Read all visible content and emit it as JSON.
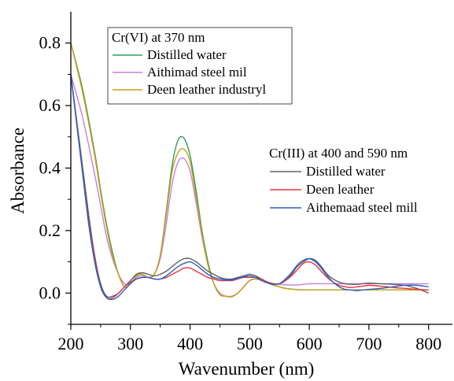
{
  "chart_data": {
    "type": "line",
    "xlabel": "Wavenumber (nm)",
    "ylabel": "Absorbance",
    "xlim": [
      200,
      840
    ],
    "ylim": [
      -0.1,
      0.9
    ],
    "xticks": [
      200,
      300,
      400,
      500,
      600,
      700,
      800
    ],
    "yticks": [
      0.0,
      0.2,
      0.4,
      0.6,
      0.8
    ],
    "ytick_labels": [
      "0.0",
      "0.2",
      "0.4",
      "0.6",
      "0.8"
    ],
    "grid": false,
    "legends": [
      {
        "title": "Cr(VI) at 370 nm",
        "placement": "top-left",
        "entries": [
          {
            "label": "Distilled water",
            "color": "#2ca05a"
          },
          {
            "label": "Aithimad steel mil",
            "color": "#c87fdc"
          },
          {
            "label": "Deen leather industryl",
            "color": "#c8a014"
          }
        ]
      },
      {
        "title": "Cr(III) at 400 and 590 nm",
        "placement": "right",
        "entries": [
          {
            "label": "Distilled water",
            "color": "#606060"
          },
          {
            "label": "Deen leather",
            "color": "#e8333a"
          },
          {
            "label": "Aithemaad steel mill",
            "color": "#2a5fc9"
          }
        ]
      }
    ],
    "series": [
      {
        "color": "#2ca05a",
        "x": [
          200,
          220,
          240,
          250,
          260,
          270,
          280,
          290,
          300,
          310,
          320,
          330,
          340,
          350,
          360,
          370,
          380,
          390,
          400,
          410,
          420,
          430,
          440,
          450,
          460,
          470,
          480,
          490,
          500,
          510,
          520,
          530,
          540,
          550,
          560,
          580,
          600,
          620,
          650,
          700,
          750,
          800
        ],
        "y": [
          0.8,
          0.65,
          0.45,
          0.33,
          0.22,
          0.13,
          0.06,
          0.02,
          0.03,
          0.055,
          0.06,
          0.05,
          0.06,
          0.12,
          0.26,
          0.41,
          0.49,
          0.495,
          0.44,
          0.33,
          0.2,
          0.1,
          0.03,
          -0.005,
          -0.01,
          -0.01,
          0.0,
          0.02,
          0.04,
          0.045,
          0.04,
          0.033,
          0.025,
          0.02,
          0.015,
          0.011,
          0.01,
          0.01,
          0.01,
          0.01,
          0.01,
          0.01
        ]
      },
      {
        "color": "#c87fdc",
        "x": [
          200,
          220,
          240,
          250,
          260,
          270,
          280,
          290,
          300,
          310,
          320,
          330,
          340,
          350,
          360,
          370,
          380,
          390,
          400,
          410,
          420,
          430,
          440,
          450,
          460,
          470,
          480,
          490,
          500,
          510,
          520,
          530,
          540,
          550,
          560,
          580,
          600,
          620,
          650,
          700,
          750,
          800
        ],
        "y": [
          0.7,
          0.56,
          0.38,
          0.28,
          0.18,
          0.11,
          0.06,
          0.03,
          0.03,
          0.05,
          0.055,
          0.05,
          0.06,
          0.11,
          0.22,
          0.35,
          0.42,
          0.43,
          0.39,
          0.29,
          0.18,
          0.09,
          0.03,
          0.0,
          -0.01,
          -0.01,
          0.0,
          0.02,
          0.04,
          0.045,
          0.04,
          0.035,
          0.03,
          0.028,
          0.026,
          0.026,
          0.03,
          0.03,
          0.03,
          0.03,
          0.03,
          0.03
        ]
      },
      {
        "color": "#c8a014",
        "x": [
          200,
          220,
          240,
          250,
          260,
          270,
          280,
          290,
          300,
          310,
          320,
          330,
          340,
          350,
          360,
          370,
          380,
          390,
          400,
          410,
          420,
          430,
          440,
          450,
          460,
          470,
          480,
          490,
          500,
          510,
          520,
          530,
          540,
          550,
          560,
          580,
          600,
          620,
          650,
          700,
          750,
          800
        ],
        "y": [
          0.8,
          0.64,
          0.44,
          0.32,
          0.21,
          0.12,
          0.06,
          0.02,
          0.03,
          0.055,
          0.06,
          0.05,
          0.06,
          0.12,
          0.25,
          0.39,
          0.45,
          0.46,
          0.42,
          0.31,
          0.19,
          0.09,
          0.03,
          -0.005,
          -0.01,
          -0.012,
          0.0,
          0.02,
          0.04,
          0.045,
          0.04,
          0.033,
          0.025,
          0.02,
          0.015,
          0.011,
          0.01,
          0.01,
          0.01,
          0.01,
          0.01,
          0.01
        ]
      },
      {
        "color": "#606060",
        "x": [
          200,
          210,
          220,
          230,
          240,
          250,
          260,
          270,
          280,
          290,
          300,
          310,
          320,
          330,
          340,
          350,
          360,
          370,
          380,
          390,
          400,
          410,
          420,
          430,
          440,
          450,
          460,
          470,
          480,
          490,
          500,
          510,
          520,
          530,
          540,
          550,
          560,
          570,
          580,
          590,
          600,
          610,
          620,
          630,
          640,
          650,
          660,
          670,
          680,
          690,
          700,
          720,
          740,
          760,
          780,
          800
        ],
        "y": [
          0.7,
          0.55,
          0.4,
          0.25,
          0.12,
          0.03,
          -0.01,
          -0.01,
          0.0,
          0.02,
          0.04,
          0.06,
          0.065,
          0.06,
          0.055,
          0.06,
          0.07,
          0.085,
          0.1,
          0.11,
          0.11,
          0.1,
          0.085,
          0.07,
          0.06,
          0.05,
          0.045,
          0.045,
          0.05,
          0.055,
          0.06,
          0.055,
          0.045,
          0.035,
          0.03,
          0.03,
          0.04,
          0.06,
          0.085,
          0.1,
          0.11,
          0.105,
          0.085,
          0.06,
          0.045,
          0.035,
          0.03,
          0.028,
          0.028,
          0.03,
          0.032,
          0.03,
          0.028,
          0.025,
          0.015,
          0.0
        ]
      },
      {
        "color": "#e8333a",
        "x": [
          200,
          210,
          220,
          230,
          240,
          250,
          260,
          270,
          280,
          290,
          300,
          310,
          320,
          330,
          340,
          350,
          360,
          370,
          380,
          390,
          400,
          410,
          420,
          430,
          440,
          450,
          460,
          470,
          480,
          490,
          500,
          510,
          520,
          530,
          540,
          550,
          560,
          570,
          580,
          590,
          600,
          610,
          620,
          630,
          640,
          650,
          660,
          670,
          680,
          690,
          700,
          720,
          740,
          760,
          780,
          800
        ],
        "y": [
          0.7,
          0.54,
          0.38,
          0.23,
          0.11,
          0.02,
          -0.015,
          -0.015,
          0.0,
          0.02,
          0.035,
          0.045,
          0.05,
          0.05,
          0.045,
          0.045,
          0.05,
          0.06,
          0.07,
          0.08,
          0.08,
          0.07,
          0.06,
          0.05,
          0.045,
          0.04,
          0.04,
          0.04,
          0.045,
          0.05,
          0.05,
          0.05,
          0.045,
          0.035,
          0.03,
          0.03,
          0.04,
          0.055,
          0.075,
          0.095,
          0.1,
          0.09,
          0.07,
          0.05,
          0.035,
          0.025,
          0.02,
          0.018,
          0.02,
          0.022,
          0.025,
          0.022,
          0.018,
          0.015,
          0.012,
          0.01
        ]
      },
      {
        "color": "#2a5fc9",
        "x": [
          200,
          210,
          220,
          230,
          240,
          250,
          260,
          270,
          280,
          290,
          300,
          310,
          320,
          330,
          340,
          350,
          360,
          370,
          380,
          390,
          400,
          410,
          420,
          430,
          440,
          450,
          460,
          470,
          480,
          490,
          500,
          510,
          520,
          530,
          540,
          550,
          560,
          570,
          580,
          590,
          600,
          610,
          620,
          630,
          640,
          650,
          660,
          670,
          680,
          690,
          700,
          720,
          740,
          760,
          780,
          800
        ],
        "y": [
          0.7,
          0.54,
          0.38,
          0.22,
          0.1,
          0.02,
          -0.015,
          -0.02,
          -0.01,
          0.01,
          0.03,
          0.045,
          0.05,
          0.05,
          0.045,
          0.045,
          0.055,
          0.07,
          0.085,
          0.095,
          0.1,
          0.09,
          0.075,
          0.06,
          0.05,
          0.045,
          0.042,
          0.042,
          0.047,
          0.052,
          0.055,
          0.05,
          0.04,
          0.032,
          0.028,
          0.03,
          0.045,
          0.065,
          0.09,
          0.105,
          0.11,
          0.1,
          0.08,
          0.055,
          0.035,
          0.02,
          0.012,
          0.01,
          0.008,
          0.01,
          0.012,
          0.015,
          0.02,
          0.025,
          0.025,
          0.02
        ]
      }
    ]
  }
}
